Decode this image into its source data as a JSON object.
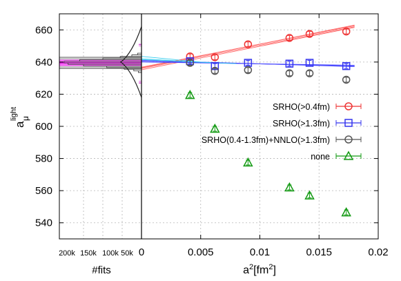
{
  "chart_data": {
    "type": "scatter",
    "xlabel_main": "a",
    "xlabel_sup": "2",
    "xlabel_unit_pre": "[fm",
    "xlabel_unit_sup": "2",
    "xlabel_unit_post": "]",
    "ylabel_main": "a",
    "ylabel_sub": "μ",
    "ylabel_sup": "light",
    "hist_xlabel": "#fits",
    "xlim": [
      0,
      0.02
    ],
    "ylim": [
      530,
      670
    ],
    "xticks": [
      "0",
      "0.005",
      "0.01",
      "0.015",
      "0.02"
    ],
    "yticks": [
      "540",
      "560",
      "580",
      "600",
      "620",
      "640",
      "660"
    ],
    "hist_ticks": [
      "200k",
      "150k",
      "100k",
      "50k"
    ],
    "grid": true,
    "legend_position": "right",
    "series": [
      {
        "name": "SRHO(>0.4fm)",
        "color": "#ee3333",
        "marker": "circle",
        "x": [
          0.0041,
          0.0062,
          0.009,
          0.0125,
          0.0142,
          0.0173
        ],
        "y": [
          643.5,
          643.0,
          651.0,
          655.0,
          657.5,
          659.0
        ],
        "err": [
          1.5,
          1.5,
          1.5,
          1.5,
          1.5,
          1.5
        ],
        "fit": [
          [
            0,
            636.0
          ],
          [
            0.018,
            662.0
          ]
        ]
      },
      {
        "name": "SRHO(>1.3fm)",
        "color": "#3333ee",
        "marker": "square",
        "x": [
          0.0041,
          0.0062,
          0.009,
          0.0125,
          0.0142,
          0.0173
        ],
        "y": [
          640.5,
          637.5,
          639.5,
          639.0,
          639.5,
          637.5
        ],
        "err": [
          1.5,
          1.5,
          1.5,
          1.5,
          1.5,
          1.5
        ],
        "fit": [
          [
            0,
            640.5
          ],
          [
            0.018,
            637.5
          ]
        ]
      },
      {
        "name": "SRHO(0.4-1.3fm)+NNLO(>1.3fm)",
        "color": "#555555",
        "marker": "circle",
        "x": [
          0.0041,
          0.0062,
          0.009,
          0.0125,
          0.0142,
          0.0173
        ],
        "y": [
          639.5,
          634.5,
          635.0,
          633.0,
          633.0,
          629.0
        ],
        "err": [
          1.5,
          1.5,
          1.5,
          1.5,
          1.5,
          1.5
        ]
      },
      {
        "name": "none",
        "color": "#119911",
        "marker": "triangle",
        "x": [
          0.0041,
          0.0062,
          0.009,
          0.0125,
          0.0142,
          0.0173
        ],
        "y": [
          619.5,
          598.5,
          577.5,
          562.0,
          557.0,
          546.5
        ],
        "err": [
          1.5,
          1.5,
          1.5,
          1.5,
          1.5,
          1.5
        ]
      }
    ],
    "histogram": {
      "color_fill": "#ff33ff",
      "band": [
        636,
        643
      ],
      "center": 639.5,
      "profile_y": [
        634,
        635,
        636,
        637,
        638,
        639,
        640,
        641,
        642,
        643,
        644,
        645
      ],
      "profile_counts": [
        8000,
        20000,
        45000,
        90000,
        150000,
        190000,
        200000,
        160000,
        100000,
        55000,
        25000,
        10000
      ]
    }
  }
}
